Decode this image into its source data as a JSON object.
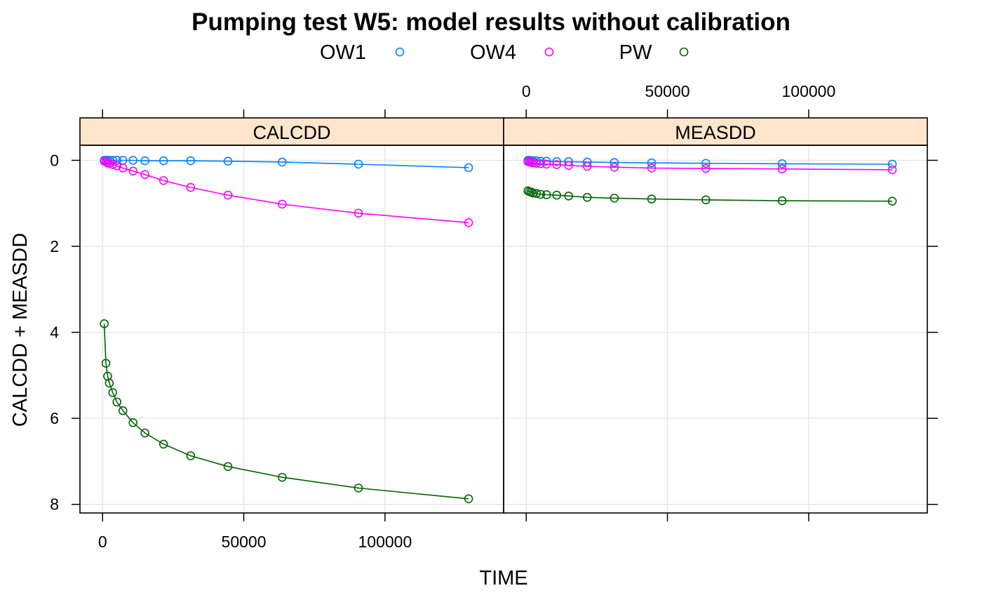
{
  "chart_data": {
    "type": "line",
    "title": "Pumping test W5: model results without calibration",
    "xlabel": "TIME",
    "ylabel": "CALCDD + MEASDD",
    "xlim": [
      -8000,
      142000
    ],
    "ylim": [
      8.2,
      -0.35
    ],
    "y_reversed": true,
    "grid": true,
    "legend_position": "top",
    "x_ticks": [
      0,
      50000,
      100000
    ],
    "x_tick_labels": [
      "0",
      "50000",
      "100000"
    ],
    "y_ticks": [
      0,
      2,
      4,
      6,
      8
    ],
    "y_tick_labels": [
      "0",
      "2",
      "4",
      "6",
      "8"
    ],
    "x": [
      600,
      1200,
      1800,
      2400,
      3600,
      5100,
      7200,
      10800,
      15000,
      21600,
      31200,
      44400,
      63600,
      90600,
      129600
    ],
    "legend": [
      {
        "name": "OW1",
        "color": "#0080ff"
      },
      {
        "name": "OW4",
        "color": "#ff00ff"
      },
      {
        "name": "PW",
        "color": "#006400"
      }
    ],
    "panels": [
      {
        "strip": "CALCDD",
        "series": [
          {
            "name": "OW1",
            "color": "#0080ff",
            "values": [
              0.0,
              0.0,
              0.0,
              0.0,
              0.0,
              0.0,
              0.0,
              0.0,
              0.01,
              0.01,
              0.01,
              0.02,
              0.04,
              0.09,
              0.17
            ]
          },
          {
            "name": "OW4",
            "color": "#ff00ff",
            "values": [
              0.02,
              0.04,
              0.06,
              0.07,
              0.1,
              0.13,
              0.18,
              0.25,
              0.33,
              0.47,
              0.63,
              0.81,
              1.02,
              1.23,
              1.45
            ]
          },
          {
            "name": "PW",
            "color": "#006400",
            "values": [
              3.8,
              4.72,
              5.02,
              5.18,
              5.4,
              5.62,
              5.82,
              6.1,
              6.34,
              6.6,
              6.87,
              7.12,
              7.37,
              7.62,
              7.87
            ]
          }
        ]
      },
      {
        "strip": "MEASDD",
        "series": [
          {
            "name": "OW1",
            "color": "#0080ff",
            "values": [
              0.0,
              0.0,
              0.01,
              0.01,
              0.01,
              0.02,
              0.02,
              0.03,
              0.03,
              0.04,
              0.05,
              0.06,
              0.07,
              0.08,
              0.09
            ]
          },
          {
            "name": "OW4",
            "color": "#ff00ff",
            "values": [
              0.03,
              0.04,
              0.05,
              0.06,
              0.07,
              0.08,
              0.09,
              0.1,
              0.12,
              0.14,
              0.16,
              0.18,
              0.19,
              0.2,
              0.22
            ]
          },
          {
            "name": "PW",
            "color": "#006400",
            "values": [
              0.71,
              0.73,
              0.74,
              0.76,
              0.77,
              0.79,
              0.8,
              0.81,
              0.83,
              0.86,
              0.88,
              0.9,
              0.92,
              0.94,
              0.95
            ]
          }
        ]
      }
    ]
  }
}
